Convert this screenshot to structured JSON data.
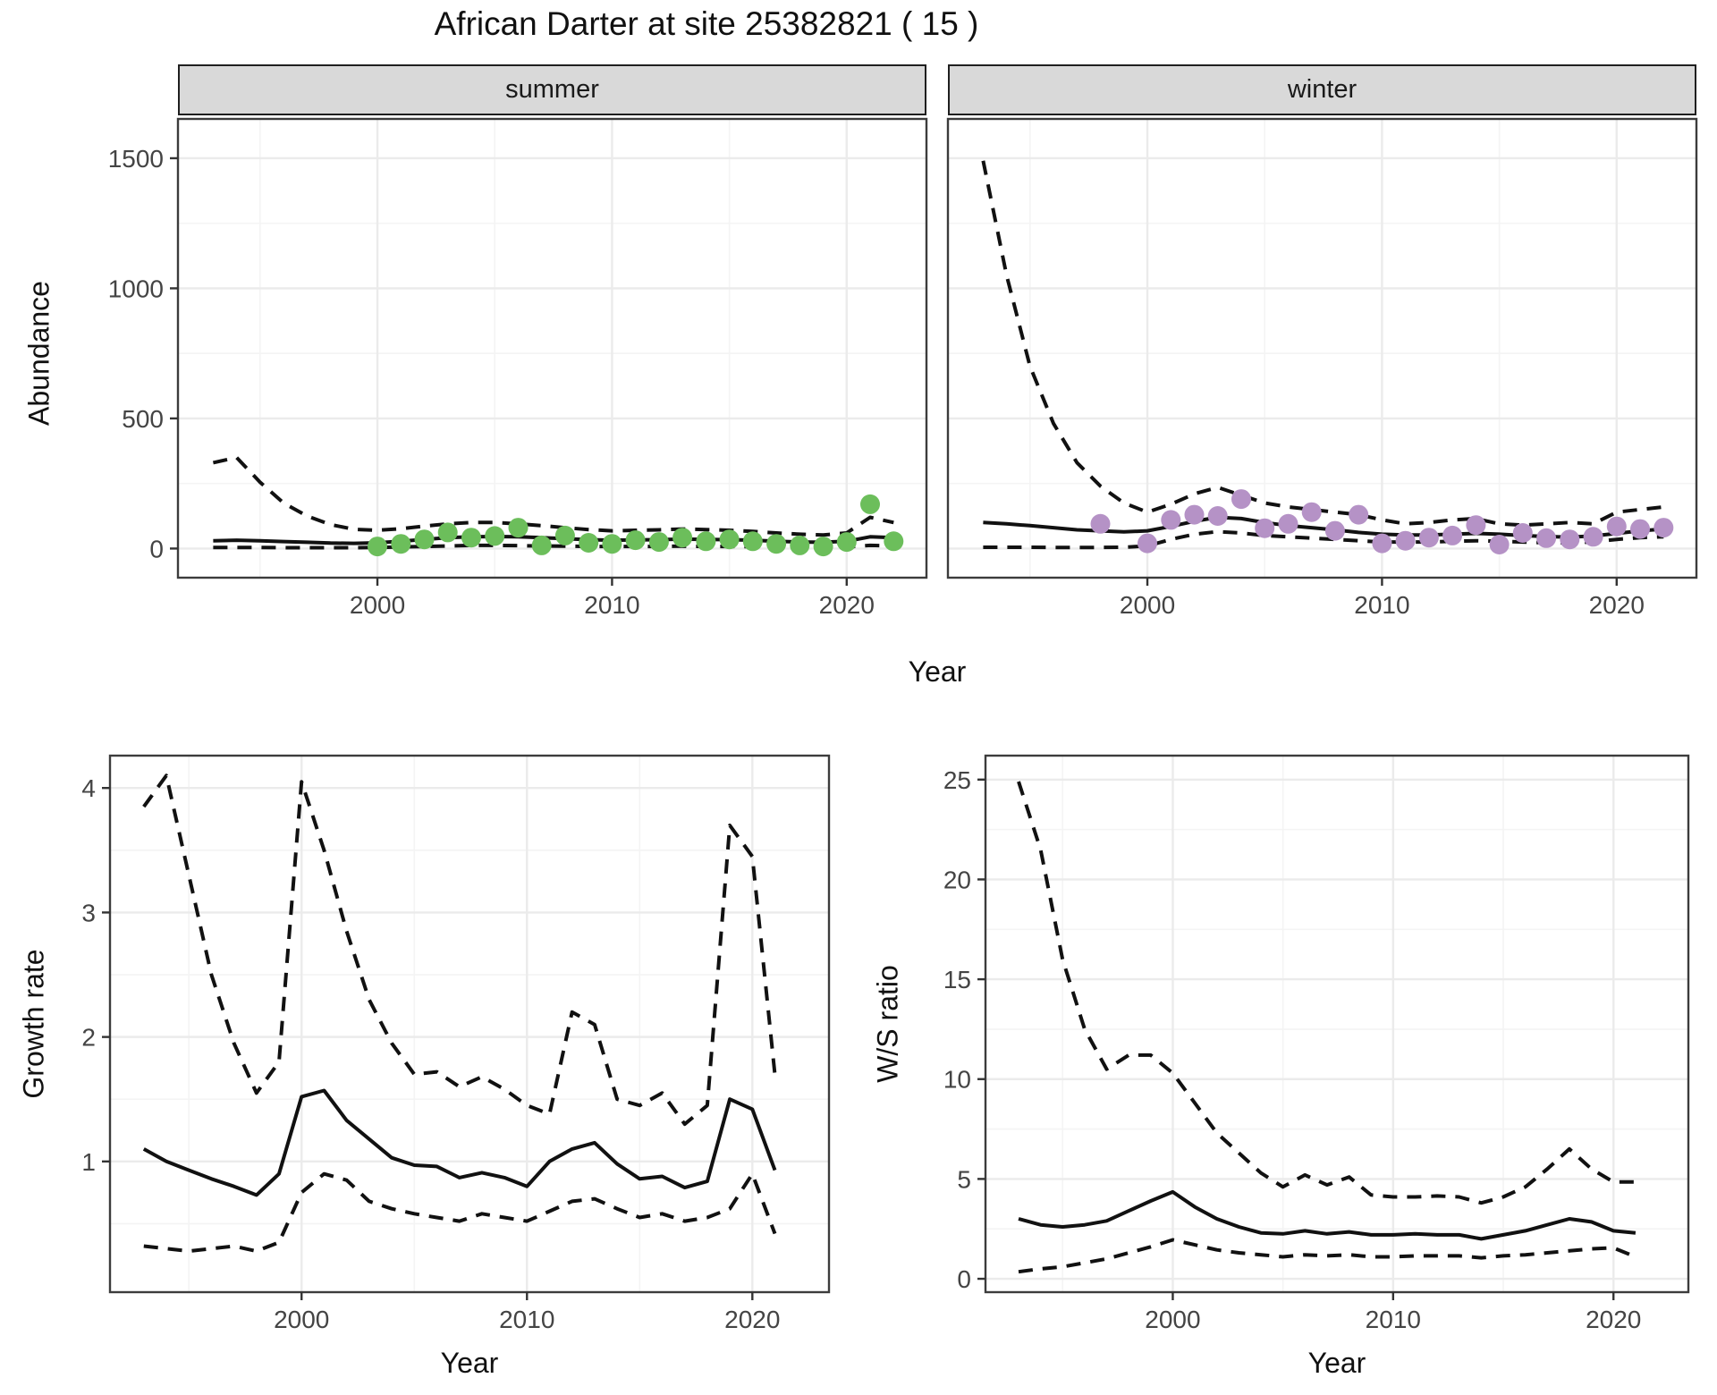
{
  "title": "African Darter at site 25382821 ( 15 )",
  "colors": {
    "summer_point": "#6CBE5B",
    "winter_point": "#B592C6",
    "line": "#111111",
    "grid_major": "#EBEBEB",
    "grid_minor": "#F4F4F4",
    "strip_bg": "#D9D9D9",
    "panel_border": "#3C3C3C",
    "tick_text": "#444444"
  },
  "chart_data": [
    {
      "id": "abundance",
      "type": "line",
      "ylabel": "Abundance",
      "xlabel": "Year",
      "xlim": [
        1991.5,
        2023.4
      ],
      "ylim": [
        -112,
        1651
      ],
      "xticks": [
        2000,
        2010,
        2020
      ],
      "xminor": [
        1995,
        2005,
        2015
      ],
      "yticks": [
        0,
        500,
        1000,
        1500
      ],
      "yminor": [
        250,
        750,
        1250
      ],
      "grid": true,
      "legend": "none",
      "line_styles": {
        "fit": "solid",
        "upper": "dashed",
        "lower": "dashed"
      },
      "facets": [
        {
          "label": "summer",
          "years": [
            1993,
            1994,
            1995,
            1996,
            1997,
            1998,
            1999,
            2000,
            2001,
            2002,
            2003,
            2004,
            2005,
            2006,
            2007,
            2008,
            2009,
            2010,
            2011,
            2012,
            2013,
            2014,
            2015,
            2016,
            2017,
            2018,
            2019,
            2020,
            2021,
            2022
          ],
          "fit": [
            30,
            32,
            30,
            27,
            24,
            21,
            20,
            22,
            28,
            35,
            42,
            45,
            46,
            45,
            42,
            38,
            34,
            32,
            33,
            34,
            36,
            35,
            34,
            32,
            28,
            25,
            24,
            28,
            45,
            42
          ],
          "upper": [
            330,
            350,
            255,
            175,
            125,
            92,
            74,
            70,
            76,
            86,
            95,
            100,
            100,
            95,
            88,
            80,
            73,
            68,
            70,
            72,
            75,
            73,
            70,
            66,
            60,
            55,
            52,
            60,
            120,
            100
          ],
          "lower": [
            4,
            4,
            4,
            3,
            3,
            3,
            3,
            4,
            6,
            8,
            10,
            12,
            12,
            11,
            10,
            9,
            8,
            8,
            8,
            8,
            9,
            8,
            8,
            7,
            6,
            5,
            5,
            6,
            12,
            10
          ],
          "points": {
            "years": [
              2000,
              2001,
              2002,
              2003,
              2004,
              2005,
              2006,
              2007,
              2008,
              2009,
              2010,
              2011,
              2012,
              2013,
              2014,
              2015,
              2016,
              2017,
              2018,
              2019,
              2020,
              2021,
              2022
            ],
            "values": [
              8,
              18,
              35,
              62,
              42,
              48,
              80,
              12,
              50,
              22,
              18,
              32,
              25,
              42,
              28,
              35,
              28,
              18,
              12,
              8,
              25,
              170,
              28
            ]
          }
        },
        {
          "label": "winter",
          "years": [
            1993,
            1994,
            1995,
            1996,
            1997,
            1998,
            1999,
            2000,
            2001,
            2002,
            2003,
            2004,
            2005,
            2006,
            2007,
            2008,
            2009,
            2010,
            2011,
            2012,
            2013,
            2014,
            2015,
            2016,
            2017,
            2018,
            2019,
            2020,
            2021,
            2022
          ],
          "fit": [
            100,
            95,
            88,
            80,
            72,
            68,
            64,
            68,
            85,
            105,
            120,
            115,
            100,
            88,
            80,
            72,
            62,
            55,
            52,
            52,
            55,
            58,
            55,
            50,
            46,
            44,
            48,
            58,
            68,
            75
          ],
          "upper": [
            1490,
            1050,
            700,
            480,
            330,
            240,
            175,
            140,
            170,
            210,
            235,
            205,
            175,
            160,
            150,
            140,
            130,
            110,
            95,
            100,
            110,
            115,
            95,
            90,
            95,
            100,
            95,
            140,
            150,
            160
          ],
          "lower": [
            5,
            5,
            5,
            4,
            4,
            4,
            5,
            10,
            35,
            55,
            65,
            60,
            50,
            45,
            40,
            35,
            30,
            25,
            25,
            25,
            28,
            30,
            28,
            25,
            22,
            22,
            25,
            35,
            42,
            45
          ],
          "points": {
            "years": [
              1998,
              2000,
              2001,
              2002,
              2003,
              2004,
              2005,
              2006,
              2007,
              2008,
              2009,
              2010,
              2011,
              2012,
              2013,
              2014,
              2015,
              2016,
              2017,
              2018,
              2019,
              2020,
              2021,
              2022
            ],
            "values": [
              95,
              20,
              110,
              130,
              125,
              190,
              78,
              95,
              140,
              68,
              130,
              20,
              30,
              42,
              50,
              90,
              15,
              60,
              40,
              35,
              45,
              85,
              75,
              80
            ]
          }
        }
      ]
    },
    {
      "id": "growth_rate",
      "type": "line",
      "ylabel": "Growth rate",
      "xlabel": "Year",
      "xlim": [
        1991.5,
        2023.4
      ],
      "ylim": [
        -0.05,
        4.26
      ],
      "xticks": [
        2000,
        2010,
        2020
      ],
      "xminor": [
        1995,
        2005,
        2015
      ],
      "yticks": [
        1,
        2,
        3,
        4
      ],
      "yminor": [
        0.5,
        1.5,
        2.5,
        3.5
      ],
      "grid": true,
      "legend": "none",
      "line_styles": {
        "fit": "solid",
        "upper": "dashed",
        "lower": "dashed"
      },
      "years": [
        1993,
        1994,
        1995,
        1996,
        1997,
        1998,
        1999,
        2000,
        2001,
        2002,
        2003,
        2004,
        2005,
        2006,
        2007,
        2008,
        2009,
        2010,
        2011,
        2012,
        2013,
        2014,
        2015,
        2016,
        2017,
        2018,
        2019,
        2020,
        2021
      ],
      "fit": [
        1.1,
        1.0,
        0.93,
        0.86,
        0.8,
        0.73,
        0.9,
        1.52,
        1.57,
        1.33,
        1.18,
        1.03,
        0.97,
        0.96,
        0.87,
        0.91,
        0.87,
        0.8,
        1.0,
        1.1,
        1.15,
        0.98,
        0.86,
        0.88,
        0.79,
        0.84,
        1.5,
        1.42,
        0.93
      ],
      "upper": [
        3.85,
        4.1,
        3.3,
        2.5,
        1.95,
        1.55,
        1.8,
        4.05,
        3.5,
        2.85,
        2.3,
        1.95,
        1.7,
        1.72,
        1.6,
        1.68,
        1.58,
        1.45,
        1.38,
        2.2,
        2.1,
        1.5,
        1.45,
        1.55,
        1.3,
        1.45,
        3.7,
        3.45,
        1.7
      ],
      "lower": [
        0.32,
        0.3,
        0.28,
        0.3,
        0.32,
        0.28,
        0.35,
        0.75,
        0.9,
        0.85,
        0.68,
        0.62,
        0.58,
        0.55,
        0.52,
        0.58,
        0.55,
        0.52,
        0.6,
        0.68,
        0.7,
        0.62,
        0.55,
        0.58,
        0.52,
        0.55,
        0.62,
        0.9,
        0.42
      ]
    },
    {
      "id": "ws_ratio",
      "type": "line",
      "ylabel": "W/S ratio",
      "xlabel": "Year",
      "xlim": [
        1991.5,
        2023.4
      ],
      "ylim": [
        -0.67,
        26.2
      ],
      "xticks": [
        2000,
        2010,
        2020
      ],
      "xminor": [
        1995,
        2005,
        2015
      ],
      "yticks": [
        0,
        5,
        10,
        15,
        20,
        25
      ],
      "yminor": [
        2.5,
        7.5,
        12.5,
        17.5,
        22.5
      ],
      "grid": true,
      "legend": "none",
      "line_styles": {
        "fit": "solid",
        "upper": "dashed",
        "lower": "dashed"
      },
      "years": [
        1993,
        1994,
        1995,
        1996,
        1997,
        1998,
        1999,
        2000,
        2001,
        2002,
        2003,
        2004,
        2005,
        2006,
        2007,
        2008,
        2009,
        2010,
        2011,
        2012,
        2013,
        2014,
        2015,
        2016,
        2017,
        2018,
        2019,
        2020,
        2021
      ],
      "fit": [
        3.0,
        2.7,
        2.6,
        2.7,
        2.9,
        3.4,
        3.9,
        4.35,
        3.6,
        3.0,
        2.6,
        2.3,
        2.25,
        2.4,
        2.25,
        2.35,
        2.2,
        2.2,
        2.25,
        2.2,
        2.2,
        2.0,
        2.2,
        2.4,
        2.7,
        3.0,
        2.85,
        2.4,
        2.3
      ],
      "upper": [
        24.9,
        21.5,
        16,
        12.5,
        10.5,
        11.2,
        11.2,
        10.3,
        8.8,
        7.3,
        6.3,
        5.3,
        4.6,
        5.2,
        4.7,
        5.1,
        4.2,
        4.1,
        4.1,
        4.15,
        4.1,
        3.8,
        4.1,
        4.6,
        5.5,
        6.5,
        5.5,
        4.85,
        4.85
      ],
      "lower": [
        0.35,
        0.5,
        0.6,
        0.8,
        1.0,
        1.3,
        1.6,
        1.95,
        1.7,
        1.45,
        1.3,
        1.2,
        1.1,
        1.2,
        1.15,
        1.2,
        1.1,
        1.1,
        1.15,
        1.15,
        1.15,
        1.05,
        1.15,
        1.2,
        1.3,
        1.4,
        1.5,
        1.55,
        1.1
      ]
    }
  ]
}
